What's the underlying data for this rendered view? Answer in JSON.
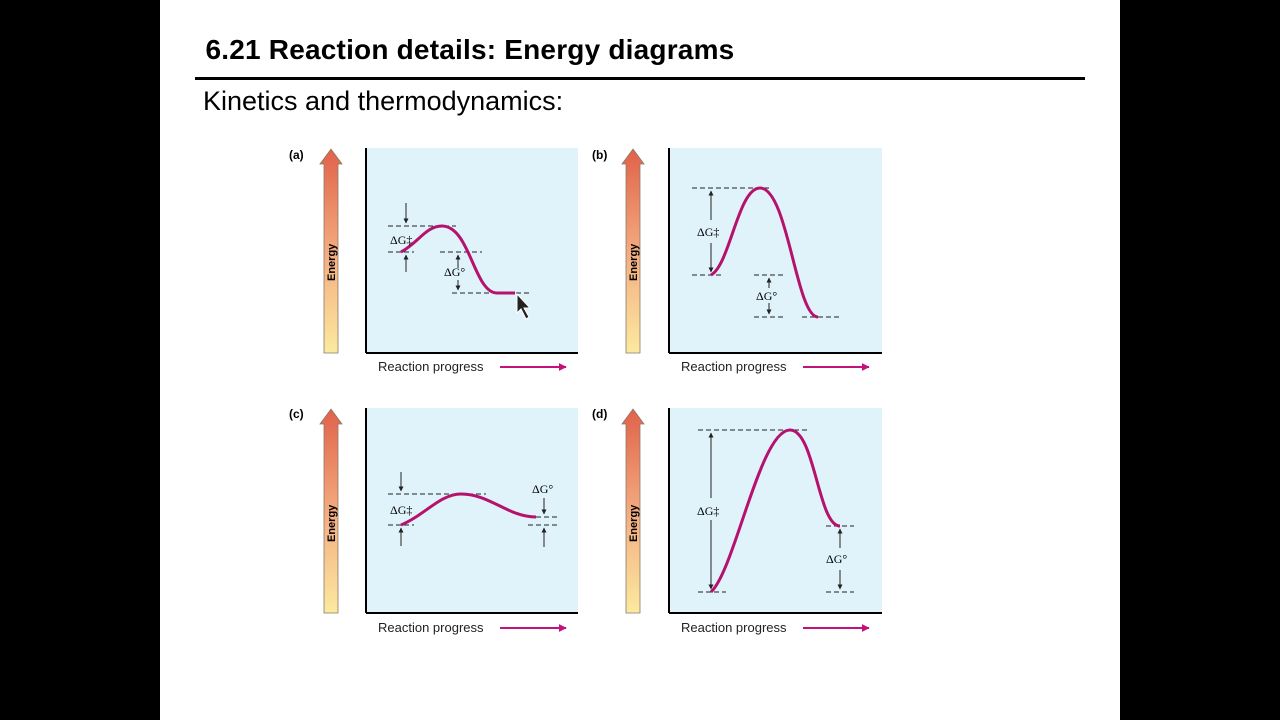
{
  "slide": {
    "title": "6.21  Reaction details: Energy diagrams",
    "subtitle": "Kinetics and thermodynamics:"
  },
  "colors": {
    "panel_bg": "#e0f3fa",
    "curve": "#b5126e",
    "arrow_top": "#e0624a",
    "arrow_bottom": "#fbeaa0",
    "progress_arrow": "#c3127e"
  },
  "panels": [
    {
      "letter": "(a)",
      "y_label": "Energy",
      "x_label": "Reaction progress",
      "dg_act_label": "ΔG‡",
      "dg_std_label": "ΔG°"
    },
    {
      "letter": "(b)",
      "y_label": "Energy",
      "x_label": "Reaction progress",
      "dg_act_label": "ΔG‡",
      "dg_std_label": "ΔG°"
    },
    {
      "letter": "(c)",
      "y_label": "Energy",
      "x_label": "Reaction progress",
      "dg_act_label": "ΔG‡",
      "dg_std_label": "ΔG°"
    },
    {
      "letter": "(d)",
      "y_label": "Energy",
      "x_label": "Reaction progress",
      "dg_act_label": "ΔG‡",
      "dg_std_label": "ΔG°"
    }
  ],
  "cursor": {
    "icon": "mouse-pointer-icon"
  }
}
